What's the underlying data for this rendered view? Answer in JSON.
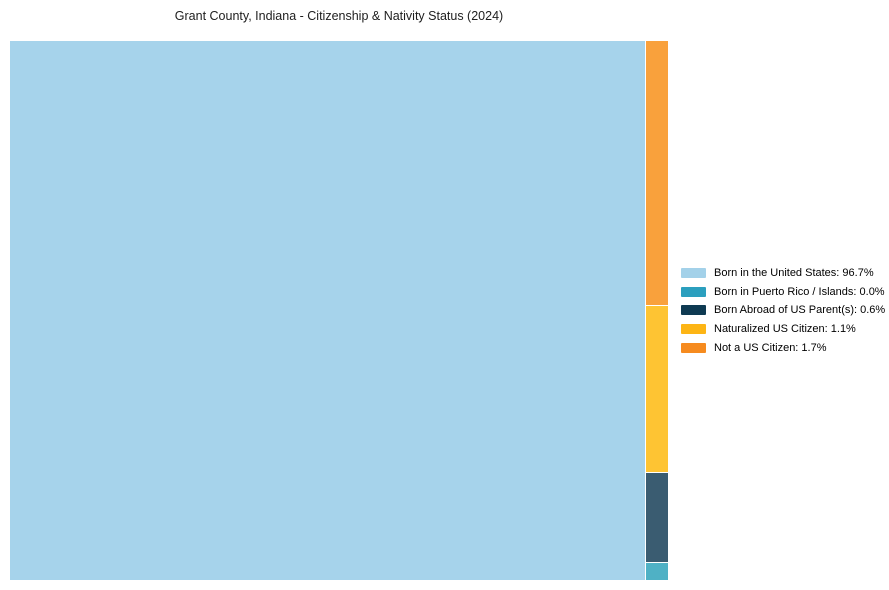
{
  "title": "Grant County, Indiana - Citizenship & Nativity Status (2024)",
  "chart_data": {
    "type": "treemap",
    "title": "Grant County, Indiana - Citizenship & Nativity Status (2024)",
    "categories": [
      "Born in the United States",
      "Born in Puerto Rico / Islands",
      "Born Abroad of US Parent(s)",
      "Naturalized US Citizen",
      "Not a US Citizen"
    ],
    "values": [
      96.7,
      0.0,
      0.6,
      1.1,
      1.7
    ],
    "unit": "%",
    "legend_position": "right-center",
    "grid": false,
    "render": {
      "main": {
        "category": "Born in the United States",
        "fill": "#A6D3EB",
        "width_fraction": 0.965
      },
      "column_top_to_bottom": [
        {
          "category": "Not a US Citizen",
          "fill": "#F9A13C",
          "height_fraction": 0.4925
        },
        {
          "category": "Naturalized US Citizen",
          "fill": "#FEC433",
          "height_fraction": 0.3097
        },
        {
          "category": "Born Abroad of US Parent(s)",
          "fill": "#3A5C71",
          "height_fraction": 0.166
        },
        {
          "category": "Born in Puerto Rico / Islands",
          "fill": "#4FB1C5",
          "height_fraction": 0.0317
        }
      ]
    }
  },
  "legend": {
    "items": [
      {
        "display": "Born in the United States: 96.7%",
        "swatch_color": "#A3D1E9"
      },
      {
        "display": "Born in Puerto Rico / Islands: 0.0%",
        "swatch_color": "#2B9FBE"
      },
      {
        "display": "Born Abroad of US Parent(s): 0.6%",
        "swatch_color": "#0E3A52"
      },
      {
        "display": "Naturalized US Citizen: 1.1%",
        "swatch_color": "#FDB515"
      },
      {
        "display": "Not a US Citizen: 1.7%",
        "swatch_color": "#F68B1F"
      }
    ]
  }
}
